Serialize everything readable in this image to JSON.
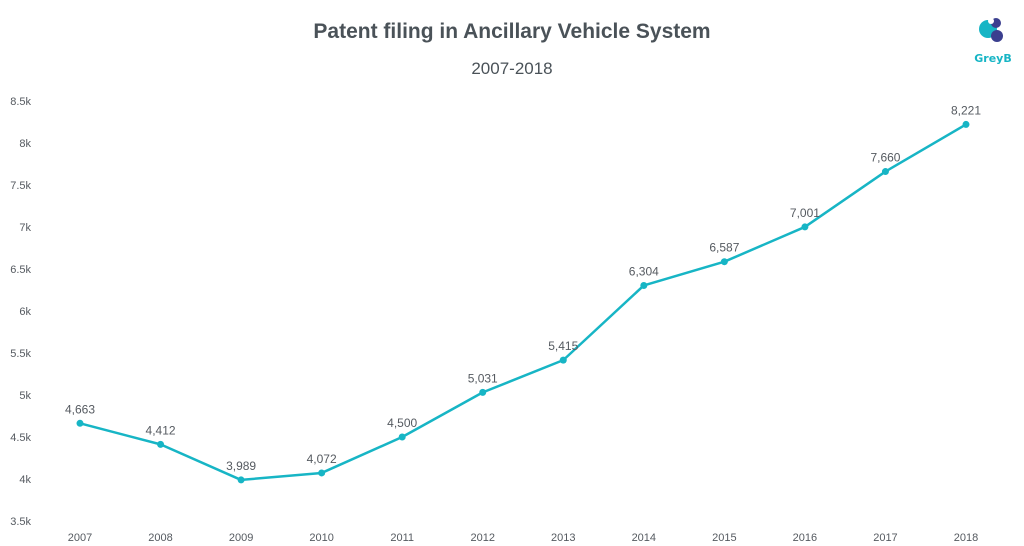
{
  "chart_data": {
    "type": "line",
    "title": "Patent filing in Ancillary Vehicle System",
    "subtitle": "2007-2018",
    "categories": [
      "2007",
      "2008",
      "2009",
      "2010",
      "2011",
      "2012",
      "2013",
      "2014",
      "2015",
      "2016",
      "2017",
      "2018"
    ],
    "series": [
      {
        "values": [
          4663,
          4412,
          3989,
          4072,
          4500,
          5031,
          5415,
          6304,
          6587,
          7001,
          7660,
          8221
        ]
      }
    ],
    "data_labels": [
      "4,663",
      "4,412",
      "3,989",
      "4,072",
      "4,500",
      "5,031",
      "5,415",
      "6,304",
      "6,587",
      "7,001",
      "7,660",
      "8,221"
    ],
    "ylim": [
      3500,
      8500
    ],
    "yticks": [
      3500,
      4000,
      4500,
      5000,
      5500,
      6000,
      6500,
      7000,
      7500,
      8000,
      8500
    ],
    "ytick_labels": [
      "3.5k",
      "4k",
      "4.5k",
      "5k",
      "5.5k",
      "6k",
      "6.5k",
      "7k",
      "7.5k",
      "8k",
      "8.5k"
    ],
    "xlabel": "",
    "ylabel": "",
    "grid": false,
    "line_color": "#17b5c5"
  },
  "logo": {
    "text": "GreyB",
    "icon": "greyb-logo-icon",
    "color": "#17b5c5"
  }
}
